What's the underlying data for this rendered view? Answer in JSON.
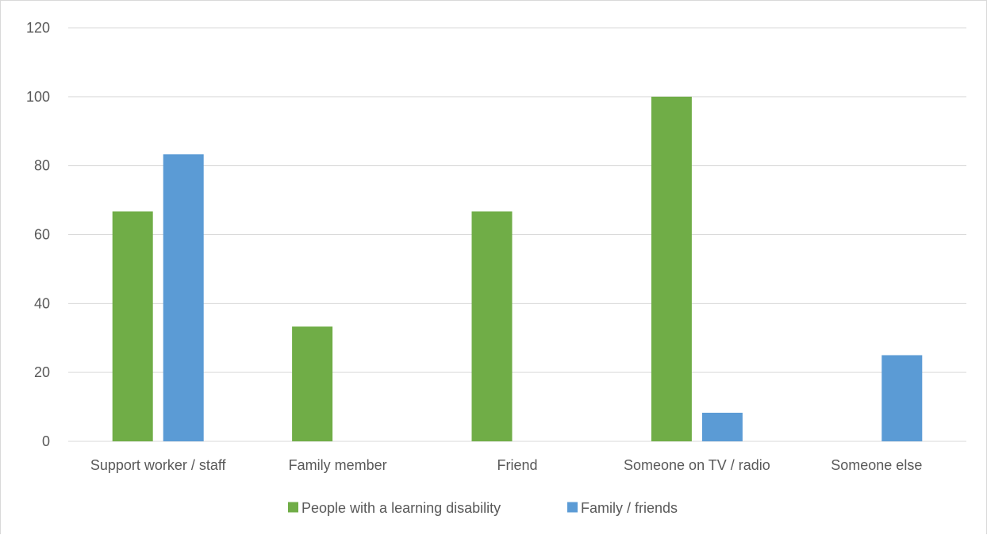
{
  "chart_data": {
    "type": "bar",
    "title": "",
    "xlabel": "",
    "ylabel": "",
    "categories": [
      "Support worker / staff",
      "Family member",
      "Friend",
      "Someone on TV / radio",
      "Someone else"
    ],
    "series": [
      {
        "name": "People with a learning disability",
        "color": "#70ad47",
        "values": [
          66.7,
          33.3,
          66.7,
          100,
          0
        ]
      },
      {
        "name": "Family / friends",
        "color": "#5b9bd5",
        "values": [
          83.3,
          0,
          0,
          8.3,
          25
        ]
      }
    ],
    "ylim": [
      0,
      120
    ],
    "yticks": [
      "0",
      "20",
      "40",
      "60",
      "80",
      "100",
      "120"
    ],
    "grid": true,
    "legend_position": "bottom"
  }
}
